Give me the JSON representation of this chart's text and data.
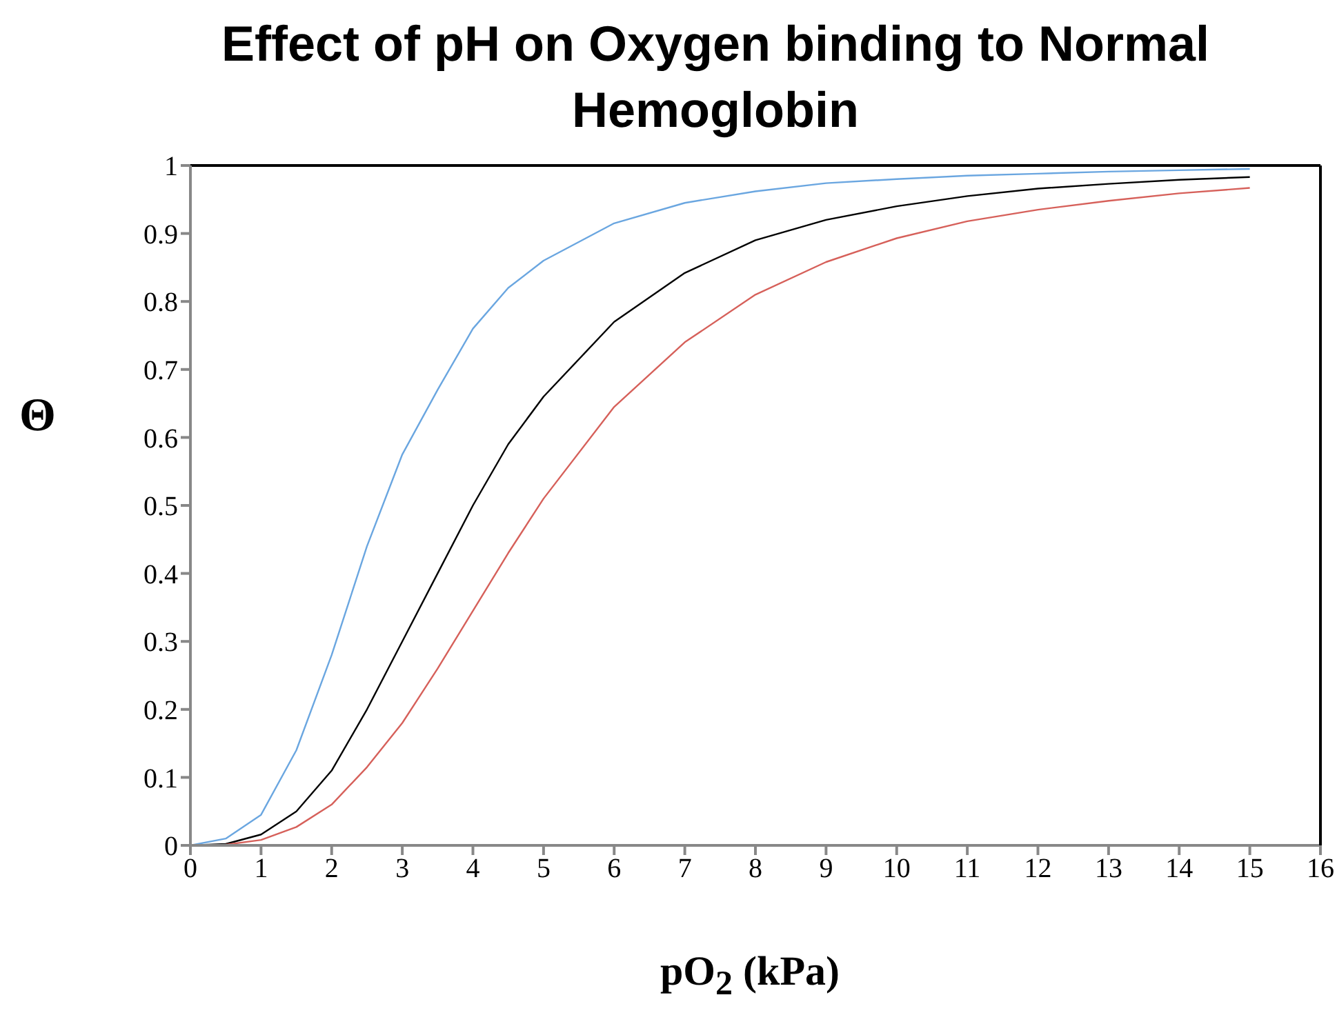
{
  "chart_data": {
    "type": "line",
    "title": "Effect of pH on Oxygen binding to Normal Hemoglobin",
    "xlabel": "pO$_{2}$  (kPa)",
    "ylabel": "Θ",
    "x": [
      0,
      0.5,
      1,
      1.5,
      2,
      2.5,
      3,
      3.5,
      4,
      4.5,
      5,
      6,
      7,
      8,
      9,
      10,
      11,
      12,
      13,
      14,
      15
    ],
    "series": [
      {
        "color": "#6aa6e0",
        "values": [
          0,
          0.01,
          0.045,
          0.14,
          0.28,
          0.44,
          0.575,
          0.67,
          0.76,
          0.82,
          0.86,
          0.915,
          0.945,
          0.962,
          0.974,
          0.98,
          0.985,
          0.988,
          0.991,
          0.993,
          0.995
        ]
      },
      {
        "color": "#000000",
        "values": [
          0,
          0.002,
          0.016,
          0.05,
          0.11,
          0.2,
          0.3,
          0.4,
          0.5,
          0.59,
          0.66,
          0.77,
          0.842,
          0.89,
          0.92,
          0.94,
          0.955,
          0.966,
          0.973,
          0.979,
          0.983
        ]
      },
      {
        "color": "#d6605a",
        "values": [
          0,
          0.001,
          0.008,
          0.027,
          0.06,
          0.115,
          0.18,
          0.26,
          0.345,
          0.43,
          0.51,
          0.645,
          0.74,
          0.81,
          0.858,
          0.893,
          0.918,
          0.935,
          0.948,
          0.959,
          0.967
        ]
      }
    ],
    "xlim": [
      0,
      16
    ],
    "xticks": [
      0,
      1,
      2,
      3,
      4,
      5,
      6,
      7,
      8,
      9,
      10,
      11,
      12,
      13,
      14,
      15,
      16
    ],
    "ylim": [
      0,
      1
    ],
    "yticks": [
      0,
      0.1,
      0.2,
      0.3,
      0.4,
      0.5,
      0.6,
      0.7,
      0.8,
      0.9,
      1
    ]
  }
}
